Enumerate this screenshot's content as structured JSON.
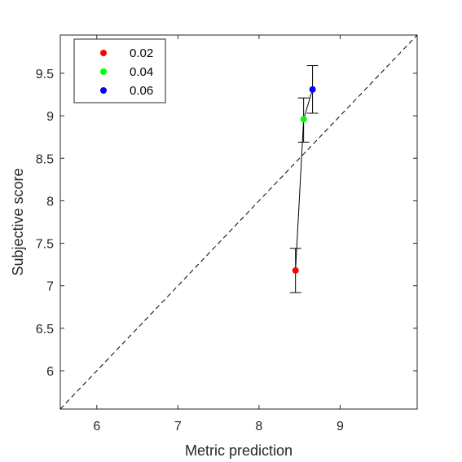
{
  "chart_data": {
    "type": "scatter",
    "xlabel": "Metric prediction",
    "ylabel": "Subjective score",
    "xlim": [
      5.55,
      9.95
    ],
    "ylim": [
      5.55,
      9.95
    ],
    "xticks": [
      6,
      7,
      8,
      9
    ],
    "yticks": [
      6,
      6.5,
      7,
      7.5,
      8,
      8.5,
      9,
      9.5
    ],
    "xtick_labels": [
      "6",
      "7",
      "8",
      "9"
    ],
    "ytick_labels": [
      "6",
      "6.5",
      "7",
      "7.5",
      "8",
      "8.5",
      "9",
      "9.5"
    ],
    "grid": false,
    "legend_position": "top-left",
    "reference_line": "identity (dashed)",
    "connecting_line": true,
    "series": [
      {
        "name": "0.02",
        "color": "#ff0000",
        "x": 8.45,
        "y": 7.18,
        "err_low": 6.92,
        "err_high": 7.44
      },
      {
        "name": "0.04",
        "color": "#00ff00",
        "x": 8.55,
        "y": 8.96,
        "err_low": 8.69,
        "err_high": 9.21
      },
      {
        "name": "0.06",
        "color": "#0000ff",
        "x": 8.66,
        "y": 9.31,
        "err_low": 9.03,
        "err_high": 9.59
      }
    ]
  }
}
